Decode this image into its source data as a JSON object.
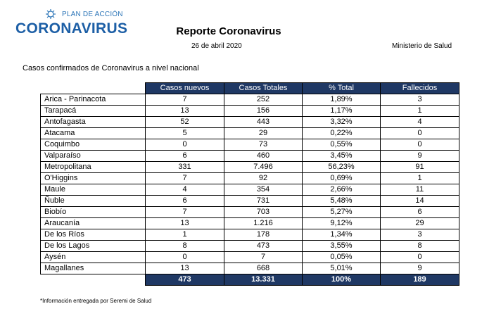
{
  "logo": {
    "top": "PLAN DE ACCIÓN",
    "main": "CORONAVIRUS",
    "icon": "virus-icon",
    "color": "#1d5fa6"
  },
  "header": {
    "title": "Reporte Coronavirus",
    "date": "26 de abril 2020",
    "ministry": "Ministerio de Salud"
  },
  "subtitle": "Casos confirmados de Coronavirus a nivel nacional",
  "table": {
    "headers": [
      "Casos nuevos",
      "Casos Totales",
      "% Total",
      "Fallecidos"
    ],
    "rows": [
      [
        "Arica - Parinacota",
        "7",
        "252",
        "1,89%",
        "3"
      ],
      [
        "Tarapacá",
        "13",
        "156",
        "1,17%",
        "1"
      ],
      [
        "Antofagasta",
        "52",
        "443",
        "3,32%",
        "4"
      ],
      [
        "Atacama",
        "5",
        "29",
        "0,22%",
        "0"
      ],
      [
        "Coquimbo",
        "0",
        "73",
        "0,55%",
        "0"
      ],
      [
        "Valparaíso",
        "6",
        "460",
        "3,45%",
        "9"
      ],
      [
        "Metropolitana",
        "331",
        "7.496",
        "56,23%",
        "91"
      ],
      [
        "O'Higgins",
        "7",
        "92",
        "0,69%",
        "1"
      ],
      [
        "Maule",
        "4",
        "354",
        "2,66%",
        "11"
      ],
      [
        "Ñuble",
        "6",
        "731",
        "5,48%",
        "14"
      ],
      [
        "Biobío",
        "7",
        "703",
        "5,27%",
        "6"
      ],
      [
        "Araucanía",
        "13",
        "1.216",
        "9,12%",
        "29"
      ],
      [
        "De los Ríos",
        "1",
        "178",
        "1,34%",
        "3"
      ],
      [
        "De los Lagos",
        "8",
        "473",
        "3,55%",
        "8"
      ],
      [
        "Aysén",
        "0",
        "7",
        "0,05%",
        "0"
      ],
      [
        "Magallanes",
        "13",
        "668",
        "5,01%",
        "9"
      ]
    ],
    "totals": [
      "473",
      "13.331",
      "100%",
      "189"
    ],
    "header_color": "#1f3864"
  },
  "footnote": "*Información entregada por Seremi de Salud"
}
